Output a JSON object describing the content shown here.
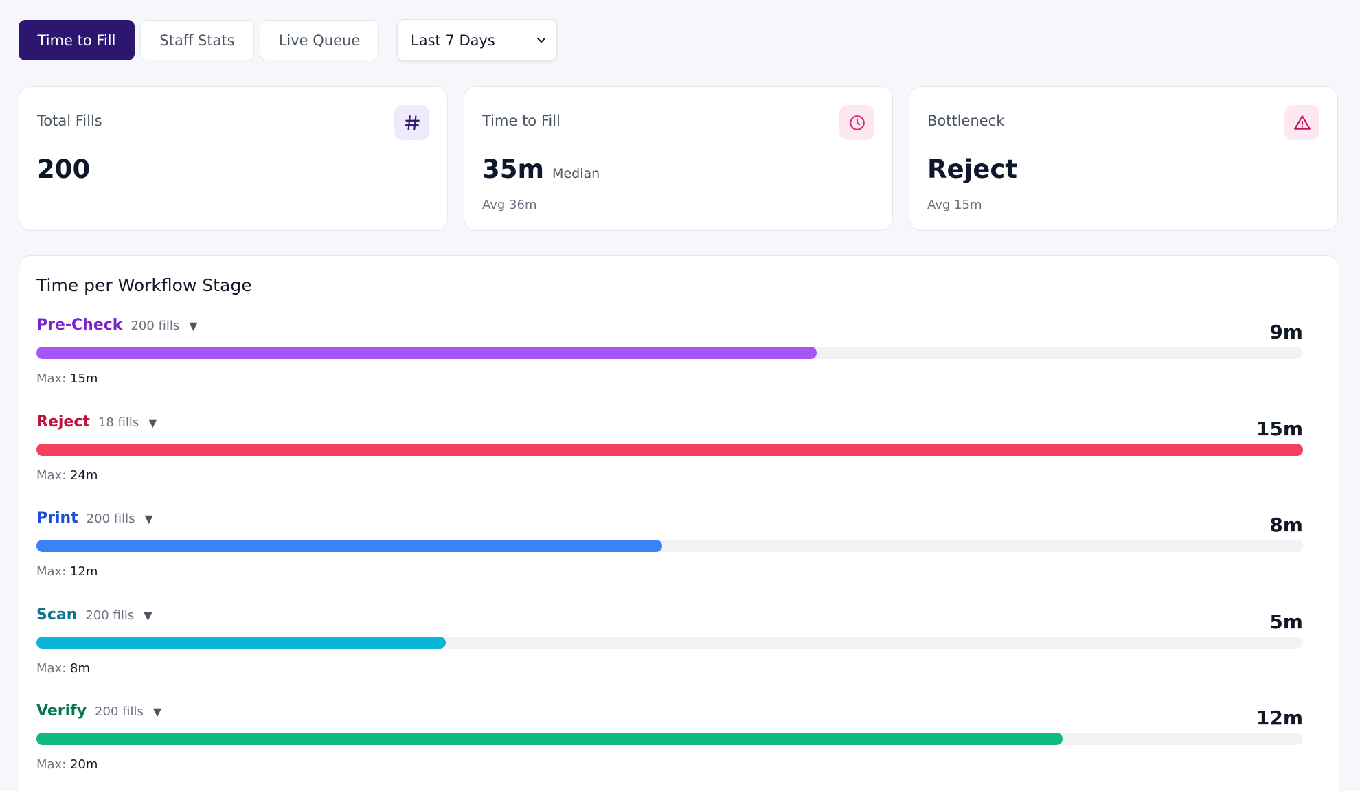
{
  "tabs": [
    {
      "label": "Time to Fill",
      "active": true
    },
    {
      "label": "Staff Stats",
      "active": false
    },
    {
      "label": "Live Queue",
      "active": false
    }
  ],
  "range_select": {
    "value": "Last 7 Days"
  },
  "cards": {
    "total_fills": {
      "label": "Total Fills",
      "value": "200",
      "icon": "hash-icon"
    },
    "time_to_fill": {
      "label": "Time to Fill",
      "value": "35m",
      "suffix": "Median",
      "sub": "Avg 36m",
      "icon": "clock-icon"
    },
    "bottleneck": {
      "label": "Bottleneck",
      "value": "Reject",
      "sub": "Avg 15m",
      "icon": "alert-triangle-icon"
    }
  },
  "stages_panel": {
    "title": "Time per Workflow Stage",
    "max_label": "Max:",
    "stages": [
      {
        "name": "Pre-Check",
        "fills": "200 fills",
        "time": "9m",
        "max": "15m",
        "progress": 0.616,
        "name_color": "#7e22ce",
        "bar_color": "#a855f7"
      },
      {
        "name": "Reject",
        "fills": "18 fills",
        "time": "15m",
        "max": "24m",
        "progress": 1.0,
        "name_color": "#be123c",
        "bar_color": "#f43f5e"
      },
      {
        "name": "Print",
        "fills": "200 fills",
        "time": "8m",
        "max": "12m",
        "progress": 0.494,
        "name_color": "#1d4ed8",
        "bar_color": "#3b82f6"
      },
      {
        "name": "Scan",
        "fills": "200 fills",
        "time": "5m",
        "max": "8m",
        "progress": 0.323,
        "name_color": "#0e7490",
        "bar_color": "#06b6d4"
      },
      {
        "name": "Verify",
        "fills": "200 fills",
        "time": "12m",
        "max": "20m",
        "progress": 0.81,
        "name_color": "#047857",
        "bar_color": "#10b981"
      }
    ]
  },
  "colors": {
    "accent": "#2d1670",
    "hash_icon": "#2d1670",
    "clock_icon": "#db2777",
    "alert_icon": "#be185d"
  }
}
